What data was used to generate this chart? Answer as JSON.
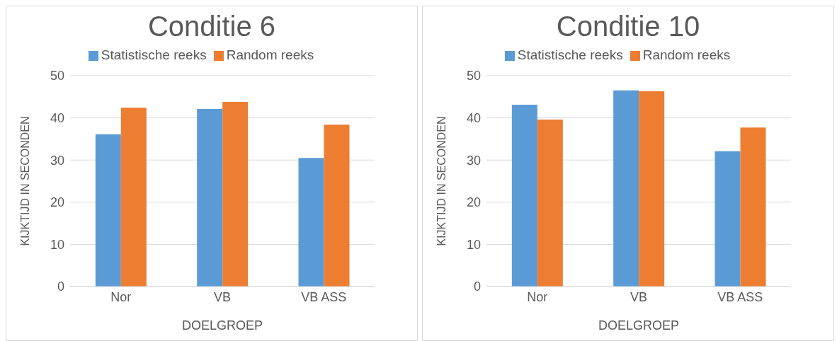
{
  "chart_data": [
    {
      "type": "bar",
      "title": "Conditie 6",
      "xlabel": "DOELGROEP",
      "ylabel": "KIJKTIJD IN SECONDEN",
      "categories": [
        "Nor",
        "VB",
        "VB ASS"
      ],
      "series": [
        {
          "name": "Statistische reeks",
          "color": "#5b9bd5",
          "values": [
            36.1,
            42.1,
            30.5
          ]
        },
        {
          "name": "Random reeks",
          "color": "#ed7d31",
          "values": [
            42.4,
            43.8,
            38.4
          ]
        }
      ],
      "ylim": [
        0,
        50
      ],
      "yticks": [
        0,
        10,
        20,
        30,
        40,
        50
      ],
      "grid": "y",
      "legend": "top"
    },
    {
      "type": "bar",
      "title": "Conditie 10",
      "xlabel": "DOELGROEP",
      "ylabel": "KIJKTIJD IN SECONDEN",
      "categories": [
        "Nor",
        "VB",
        "VB ASS"
      ],
      "series": [
        {
          "name": "Statistische reeks",
          "color": "#5b9bd5",
          "values": [
            43.1,
            46.5,
            32.1
          ]
        },
        {
          "name": "Random reeks",
          "color": "#ed7d31",
          "values": [
            39.6,
            46.3,
            37.7
          ]
        }
      ],
      "ylim": [
        0,
        50
      ],
      "yticks": [
        0,
        10,
        20,
        30,
        40,
        50
      ],
      "grid": "y",
      "legend": "top"
    }
  ]
}
